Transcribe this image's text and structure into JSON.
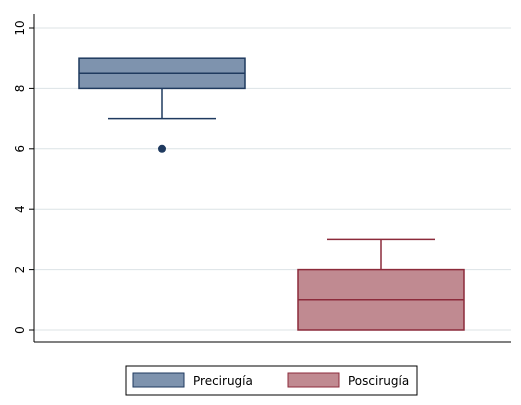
{
  "chart_data": {
    "type": "boxplot",
    "title": "",
    "xlabel": "",
    "ylabel": "",
    "ylim": [
      0,
      10
    ],
    "yticks": [
      0,
      2,
      4,
      6,
      8,
      10
    ],
    "grid": true,
    "legend_position": "bottom",
    "series": [
      {
        "name": "Precirugía",
        "color": "#7E93AE",
        "edge_color": "#1F3A5F",
        "whisker_low": 7,
        "q1": 8,
        "median": 8.5,
        "q3": 9,
        "whisker_high": 9,
        "outliers": [
          6
        ]
      },
      {
        "name": "Poscirugía",
        "color": "#C08A91",
        "edge_color": "#8C2B3B",
        "whisker_low": 0,
        "q1": 0,
        "median": 1,
        "q3": 2,
        "whisker_high": 3,
        "outliers": []
      }
    ]
  }
}
